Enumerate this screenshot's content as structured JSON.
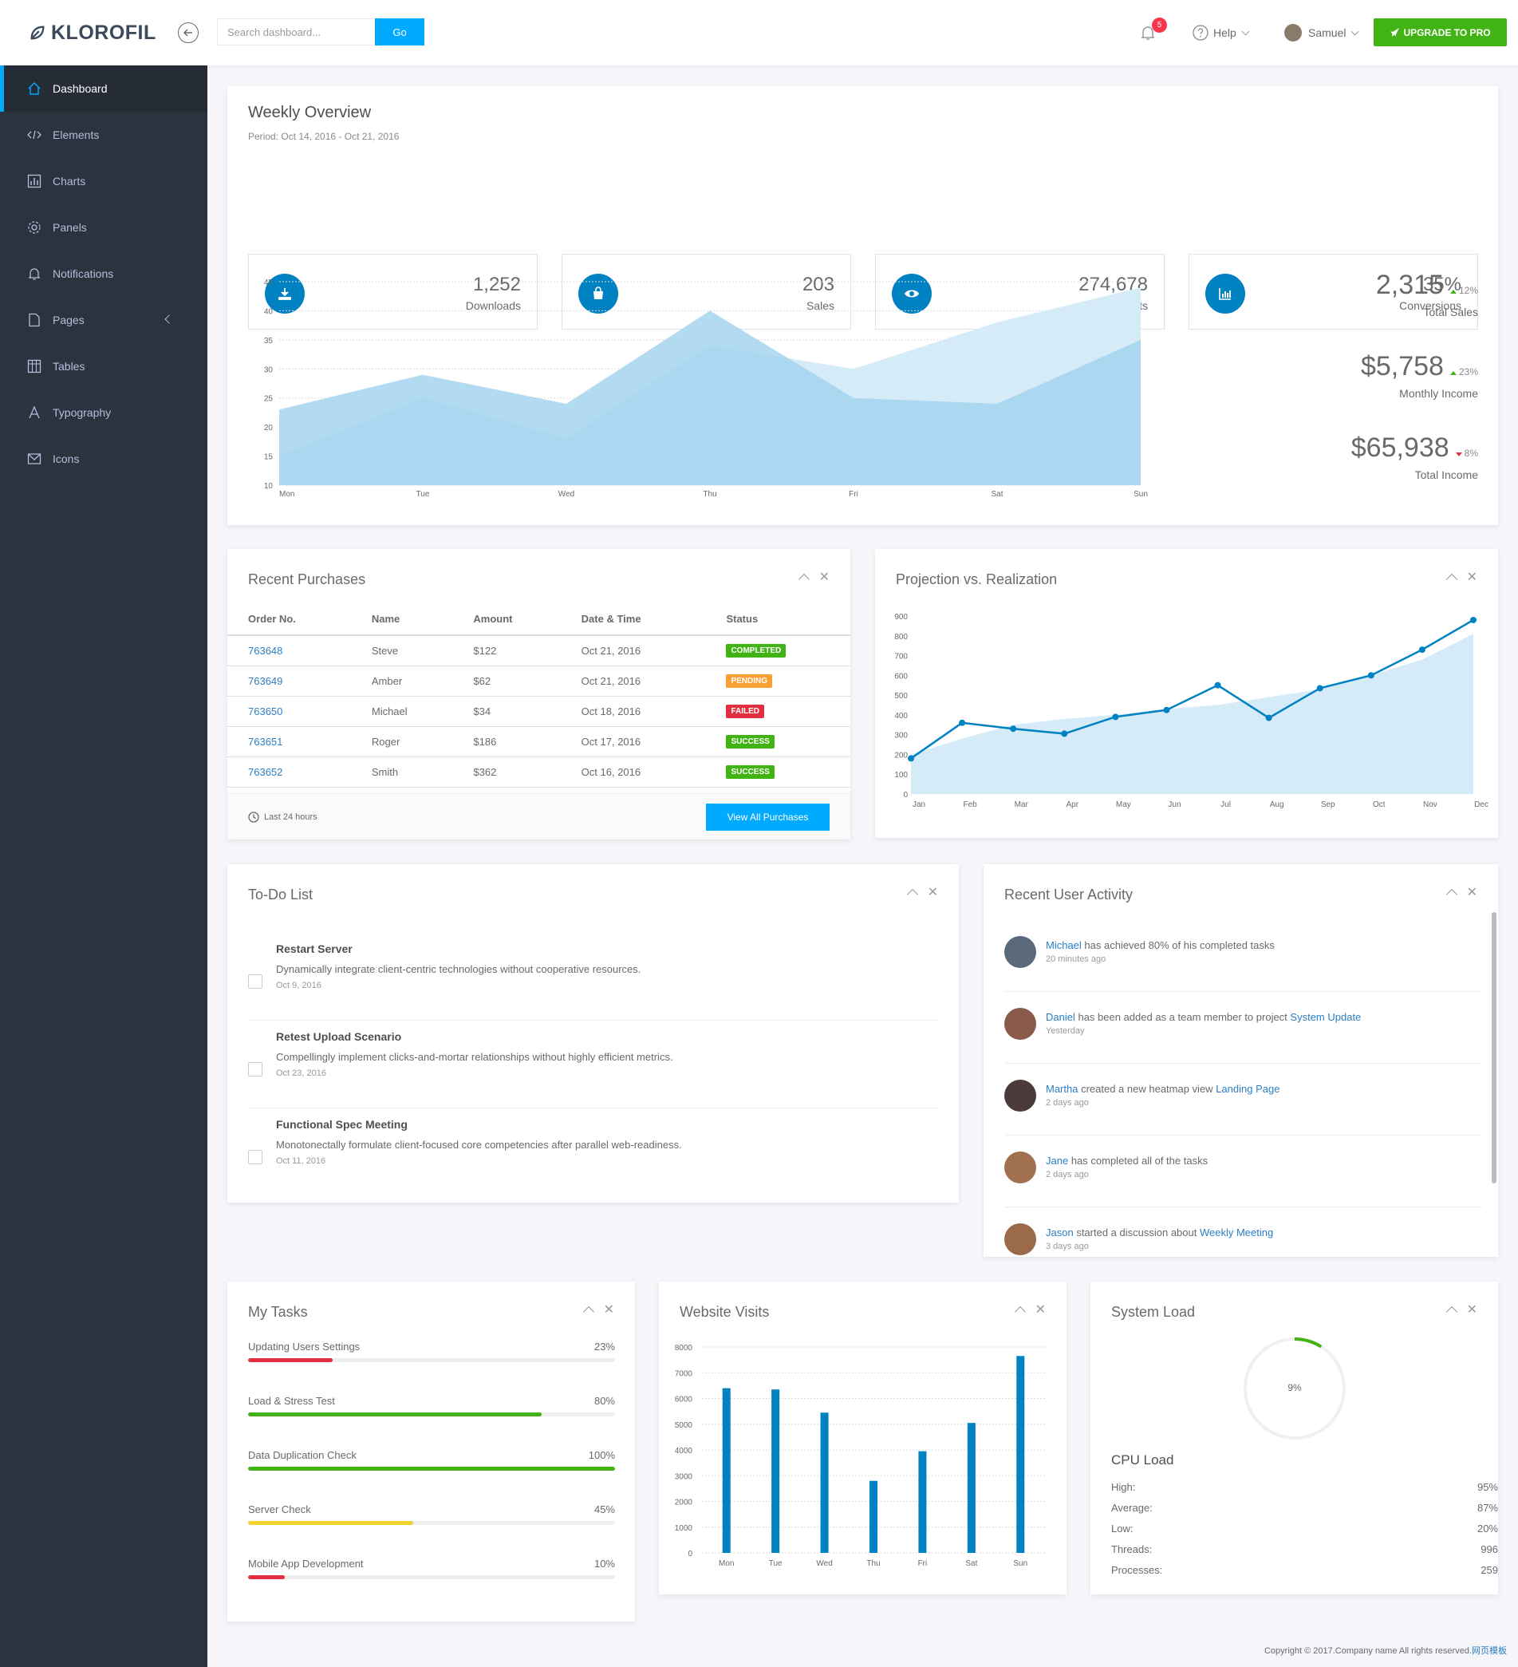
{
  "navbar": {
    "brand": "KLOROFIL",
    "search_placeholder": "Search dashboard...",
    "search_button": "Go",
    "notification_count": "5",
    "help_label": "Help",
    "user_name": "Samuel",
    "upgrade_label": "UPGRADE TO PRO"
  },
  "sidebar": {
    "items": [
      {
        "label": "Dashboard",
        "icon": "home-icon"
      },
      {
        "label": "Elements",
        "icon": "code-icon"
      },
      {
        "label": "Charts",
        "icon": "chart-bars-icon"
      },
      {
        "label": "Panels",
        "icon": "cog-icon"
      },
      {
        "label": "Notifications",
        "icon": "bell-icon"
      },
      {
        "label": "Pages",
        "icon": "file-icon"
      },
      {
        "label": "Tables",
        "icon": "table-icon"
      },
      {
        "label": "Typography",
        "icon": "text-format-icon"
      },
      {
        "label": "Icons",
        "icon": "linearicons-icon"
      }
    ]
  },
  "overview": {
    "title": "Weekly Overview",
    "period": "Period: Oct 14, 2016 - Oct 21, 2016",
    "metrics": [
      {
        "value": "1,252",
        "label": "Downloads",
        "icon": "download-icon"
      },
      {
        "value": "203",
        "label": "Sales",
        "icon": "shopping-bag-icon"
      },
      {
        "value": "274,678",
        "label": "Visits",
        "icon": "eye-icon"
      },
      {
        "value": "35%",
        "label": "Conversions",
        "icon": "bar-chart-icon"
      }
    ],
    "summary": [
      {
        "value": "2,315",
        "change": "12%",
        "direction": "up",
        "label": "Total Sales"
      },
      {
        "value": "$5,758",
        "change": "23%",
        "direction": "up",
        "label": "Monthly Income"
      },
      {
        "value": "$65,938",
        "change": "8%",
        "direction": "down",
        "label": "Total Income"
      }
    ]
  },
  "purchases": {
    "title": "Recent Purchases",
    "headers": [
      "Order No.",
      "Name",
      "Amount",
      "Date & Time",
      "Status"
    ],
    "rows": [
      {
        "order": "763648",
        "name": "Steve",
        "amount": "$122",
        "date": "Oct 21, 2016",
        "status": "COMPLETED",
        "kind": "completed"
      },
      {
        "order": "763649",
        "name": "Amber",
        "amount": "$62",
        "date": "Oct 21, 2016",
        "status": "PENDING",
        "kind": "pending"
      },
      {
        "order": "763650",
        "name": "Michael",
        "amount": "$34",
        "date": "Oct 18, 2016",
        "status": "FAILED",
        "kind": "failed"
      },
      {
        "order": "763651",
        "name": "Roger",
        "amount": "$186",
        "date": "Oct 17, 2016",
        "status": "SUCCESS",
        "kind": "success"
      },
      {
        "order": "763652",
        "name": "Smith",
        "amount": "$362",
        "date": "Oct 16, 2016",
        "status": "SUCCESS",
        "kind": "success"
      }
    ],
    "footer_note": "Last 24 hours",
    "view_all": "View All Purchases"
  },
  "projection": {
    "title": "Projection vs. Realization"
  },
  "todo": {
    "title": "To-Do List",
    "items": [
      {
        "title": "Restart Server",
        "desc": "Dynamically integrate client-centric technologies without cooperative resources.",
        "date": "Oct 9, 2016"
      },
      {
        "title": "Retest Upload Scenario",
        "desc": "Compellingly implement clicks-and-mortar relationships without highly efficient metrics.",
        "date": "Oct 23, 2016"
      },
      {
        "title": "Functional Spec Meeting",
        "desc": "Monotonectally formulate client-focused core competencies after parallel web-readiness.",
        "date": "Oct 11, 2016"
      }
    ]
  },
  "activity": {
    "title": "Recent User Activity",
    "items": [
      {
        "user": "Michael",
        "text": " has achieved 80% of his completed tasks",
        "link": "",
        "time": "20 minutes ago",
        "color": "#5a6a7a"
      },
      {
        "user": "Daniel",
        "text": " has been added as a team member to project ",
        "link": "System Update",
        "time": "Yesterday",
        "color": "#8a5a4a"
      },
      {
        "user": "Martha",
        "text": " created a new heatmap view ",
        "link": "Landing Page",
        "time": "2 days ago",
        "color": "#4a3a3a"
      },
      {
        "user": "Jane",
        "text": " has completed all of the tasks",
        "link": "",
        "time": "2 days ago",
        "color": "#a07050"
      },
      {
        "user": "Jason",
        "text": " started a discussion about ",
        "link": "Weekly Meeting",
        "time": "3 days ago",
        "color": "#9a6a4a"
      }
    ]
  },
  "tasks": {
    "title": "My Tasks",
    "items": [
      {
        "name": "Updating Users Settings",
        "percent": "23%",
        "value": 23,
        "color": "#e33040"
      },
      {
        "name": "Load & Stress Test",
        "percent": "80%",
        "value": 80,
        "color": "#41b314"
      },
      {
        "name": "Data Duplication Check",
        "percent": "100%",
        "value": 100,
        "color": "#41b314"
      },
      {
        "name": "Server Check",
        "percent": "45%",
        "value": 45,
        "color": "#f2d22c"
      },
      {
        "name": "Mobile App Development",
        "percent": "10%",
        "value": 10,
        "color": "#e33040"
      }
    ]
  },
  "visits": {
    "title": "Website Visits"
  },
  "system": {
    "title": "System Load",
    "gauge_label": "9%",
    "gauge_value": 9,
    "cpu_title": "CPU Load",
    "stats": [
      {
        "label": "High:",
        "value": "95%"
      },
      {
        "label": "Average:",
        "value": "87%"
      },
      {
        "label": "Low:",
        "value": "20%"
      },
      {
        "label": "Threads:",
        "value": "996"
      },
      {
        "label": "Processes:",
        "value": "259"
      }
    ]
  },
  "footer": {
    "text": "Copyright © 2017.Company name All rights reserved.",
    "link": "网页模板"
  },
  "chart_data": [
    {
      "type": "area",
      "categories": [
        "Mon",
        "Tue",
        "Wed",
        "Thu",
        "Fri",
        "Sat",
        "Sun"
      ],
      "ylim": [
        10,
        45
      ],
      "yticks": [
        10,
        15,
        20,
        25,
        30,
        35,
        40,
        45
      ],
      "series": [
        {
          "values": [
            15,
            25,
            18,
            34,
            30,
            38,
            44
          ]
        },
        {
          "values": [
            23,
            29,
            24,
            40,
            25,
            24,
            35
          ]
        }
      ],
      "grid": true
    },
    {
      "type": "line",
      "categories": [
        "Jan",
        "Feb",
        "Mar",
        "Apr",
        "May",
        "Jun",
        "Jul",
        "Aug",
        "Sep",
        "Oct",
        "Nov",
        "Dec"
      ],
      "ylim": [
        0,
        900
      ],
      "yticks": [
        0,
        100,
        200,
        300,
        400,
        500,
        600,
        700,
        800,
        900
      ],
      "series": [
        {
          "values": [
            200,
            280,
            350,
            380,
            400,
            430,
            450,
            490,
            530,
            600,
            680,
            810
          ]
        },
        {
          "values": [
            180,
            360,
            330,
            305,
            390,
            425,
            550,
            385,
            535,
            600,
            730,
            880
          ]
        }
      ]
    },
    {
      "type": "bar",
      "categories": [
        "Mon",
        "Tue",
        "Wed",
        "Thu",
        "Fri",
        "Sat",
        "Sun"
      ],
      "values": [
        6400,
        6350,
        5450,
        2800,
        3950,
        5050,
        7650
      ],
      "ylim": [
        0,
        8000
      ],
      "yticks": [
        0,
        1000,
        2000,
        3000,
        4000,
        5000,
        6000,
        7000,
        8000
      ],
      "grid": true
    }
  ]
}
